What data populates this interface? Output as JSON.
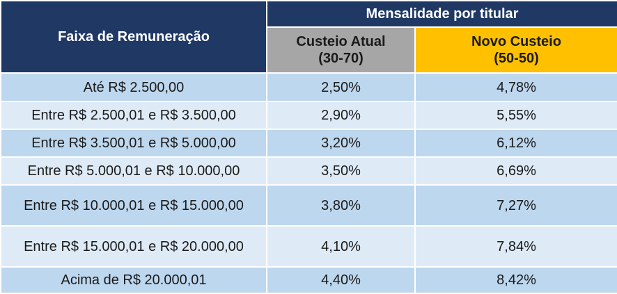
{
  "table": {
    "header": {
      "range_label": "Faixa de Remuneração",
      "group_label": "Mensalidade por titular",
      "current": {
        "line1": "Custeio Atual",
        "line2": "(30-70)"
      },
      "new": {
        "line1": "Novo Custeio",
        "line2": "(50-50)"
      }
    },
    "rows": [
      {
        "range": "Até R$ 2.500,00",
        "current": "2,50%",
        "new": "4,78%"
      },
      {
        "range": "Entre R$ 2.500,01 e R$ 3.500,00",
        "current": "2,90%",
        "new": "5,55%"
      },
      {
        "range": "Entre R$ 3.500,01 e R$ 5.000,00",
        "current": "3,20%",
        "new": "6,12%"
      },
      {
        "range": "Entre R$ 5.000,01 e R$ 10.000,00",
        "current": "3,50%",
        "new": "6,69%"
      },
      {
        "range": "Entre R$ 10.000,01 e R$ 15.000,00",
        "current": "3,80%",
        "new": "7,27%"
      },
      {
        "range": "Entre R$ 15.000,01 e R$ 20.000,00",
        "current": "4,10%",
        "new": "7,84%"
      },
      {
        "range": "Acima de R$ 20.000,01",
        "current": "4,40%",
        "new": "8,42%"
      }
    ]
  },
  "colors": {
    "header_navy": "#1f3864",
    "current_gray": "#a6a6a6",
    "new_gold": "#ffc000",
    "row_dark": "#bdd7ee",
    "row_light": "#deebf7"
  }
}
